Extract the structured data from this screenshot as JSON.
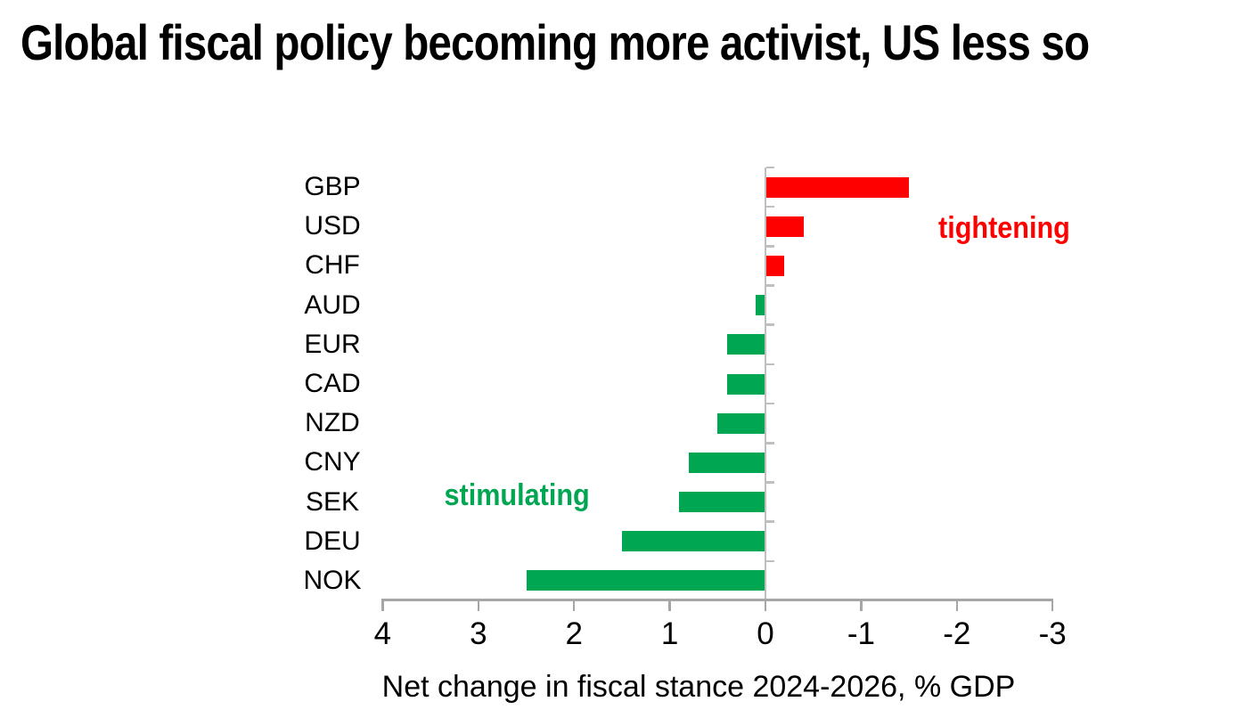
{
  "page": {
    "title": "Global fiscal policy becoming more activist, US less so",
    "background": "#FFFFFF"
  },
  "chart_data": {
    "type": "bar",
    "orientation": "horizontal",
    "title": "Global fiscal policy becoming more activist, US less so",
    "categories": [
      "GBP",
      "USD",
      "CHF",
      "AUD",
      "EUR",
      "CAD",
      "NZD",
      "CNY",
      "SEK",
      "DEU",
      "NOK"
    ],
    "values": [
      -1.5,
      -0.4,
      -0.2,
      0.1,
      0.4,
      0.4,
      0.5,
      0.8,
      0.9,
      1.5,
      2.5
    ],
    "xlabel": "Net change in fiscal stance 2024-2026, % GDP",
    "x_tick_labels": [
      "4",
      "3",
      "2",
      "1",
      "0",
      "-1",
      "-2",
      "-3"
    ],
    "x_tick_values": [
      4,
      3,
      2,
      1,
      0,
      -1,
      -2,
      -3
    ],
    "xlim": [
      4,
      -3
    ],
    "axis_reversed": true,
    "grid": false,
    "legend": "none",
    "annotations": [
      {
        "text": "tightening",
        "color": "#FF0000"
      },
      {
        "text": "stimulating",
        "color": "#00A651"
      }
    ],
    "colors": {
      "positive_bar": "#00A651",
      "negative_bar": "#FF0000",
      "axis_line": "#A6A6A6",
      "zero_line": "#BFBFBF",
      "text": "#000000"
    }
  }
}
